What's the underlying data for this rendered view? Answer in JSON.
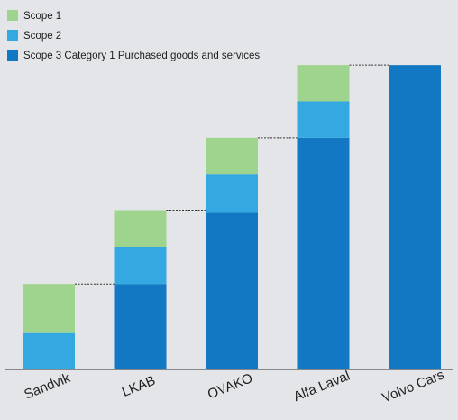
{
  "chart_data": {
    "type": "bar",
    "stacked": true,
    "categories": [
      "Sandvik",
      "LKAB",
      "OVAKO",
      "Alfa Laval",
      "Volvo Cars"
    ],
    "series": [
      {
        "name": "Scope 3 Category 1 Purchased goods and services",
        "color": "#1278c3",
        "values": [
          0,
          2.35,
          4.3,
          6.35,
          8.35
        ]
      },
      {
        "name": "Scope 2",
        "color": "#34a8e0",
        "values": [
          1.0,
          1.0,
          1.05,
          1.0,
          0
        ]
      },
      {
        "name": "Scope 1",
        "color": "#9fd48f",
        "values": [
          1.35,
          1.0,
          1.0,
          1.0,
          0
        ]
      }
    ],
    "connectors": "dotted line from the top of each bar to the next bar",
    "legend": "top-left",
    "grid": false,
    "ylim": [
      0,
      8.8
    ]
  }
}
